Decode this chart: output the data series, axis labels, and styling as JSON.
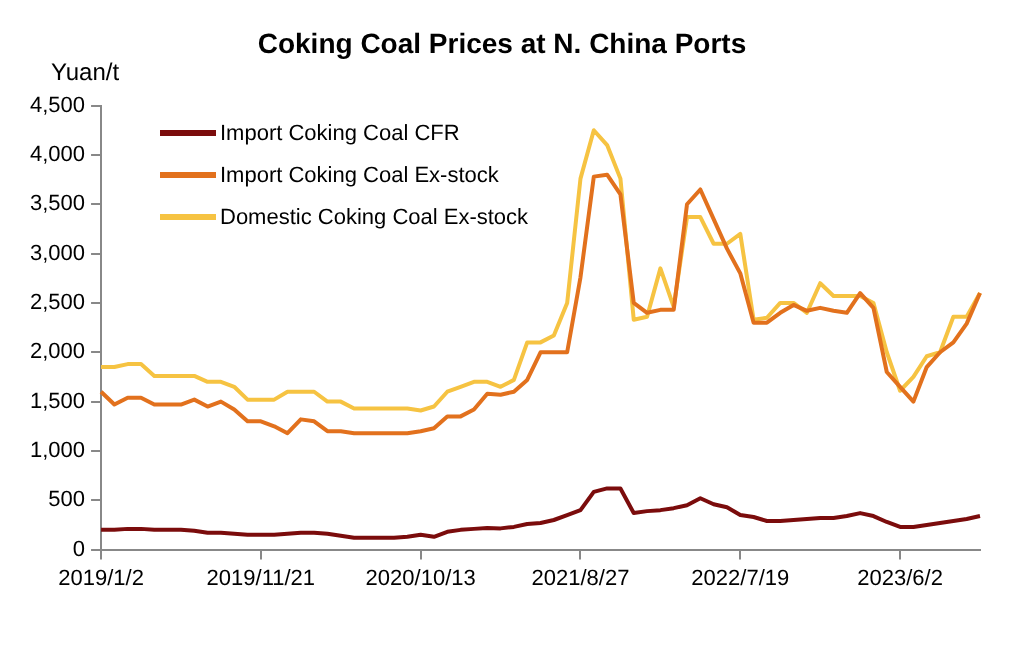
{
  "chart_data": {
    "type": "line",
    "title": "Coking Coal Prices at N. China Ports",
    "ylabel": "Yuan/t",
    "categories": [
      "2019/1/2",
      null,
      null,
      null,
      null,
      null,
      null,
      null,
      null,
      null,
      null,
      null,
      "2019/11/21",
      null,
      null,
      null,
      null,
      null,
      null,
      null,
      null,
      null,
      null,
      null,
      "2020/10/13",
      null,
      null,
      null,
      null,
      null,
      null,
      null,
      null,
      null,
      null,
      null,
      "2021/8/27",
      null,
      null,
      null,
      null,
      null,
      null,
      null,
      null,
      null,
      null,
      null,
      "2022/7/19",
      null,
      null,
      null,
      null,
      null,
      null,
      null,
      null,
      null,
      null,
      null,
      "2023/6/2",
      null,
      null,
      null,
      null,
      null,
      null
    ],
    "series": [
      {
        "name": "Import Coking Coal CFR",
        "color": "#7b0c0c",
        "values": [
          200,
          200,
          210,
          210,
          200,
          200,
          200,
          190,
          170,
          170,
          160,
          150,
          150,
          150,
          160,
          170,
          170,
          160,
          140,
          120,
          120,
          120,
          120,
          130,
          150,
          130,
          180,
          200,
          210,
          220,
          215,
          230,
          260,
          270,
          300,
          350,
          400,
          585,
          620,
          620,
          370,
          390,
          400,
          420,
          450,
          520,
          460,
          430,
          350,
          330,
          290,
          290,
          300,
          310,
          320,
          320,
          340,
          370,
          340,
          280,
          230,
          230,
          250,
          270,
          290,
          310,
          340
        ]
      },
      {
        "name": "Import Coking Coal Ex-stock",
        "color": "#e2711d",
        "values": [
          1600,
          1470,
          1540,
          1540,
          1470,
          1470,
          1470,
          1520,
          1450,
          1500,
          1420,
          1300,
          1300,
          1250,
          1180,
          1320,
          1300,
          1200,
          1200,
          1180,
          1180,
          1180,
          1180,
          1180,
          1200,
          1230,
          1350,
          1350,
          1420,
          1580,
          1570,
          1600,
          1720,
          2000,
          2000,
          2000,
          2760,
          3780,
          3800,
          3600,
          2500,
          2400,
          2430,
          2430,
          3500,
          3650,
          3350,
          3050,
          2800,
          2300,
          2300,
          2400,
          2480,
          2420,
          2450,
          2420,
          2400,
          2600,
          2450,
          1800,
          1650,
          1500,
          1850,
          2000,
          2100,
          2290,
          2600
        ]
      },
      {
        "name": "Domestic Coking Coal Ex-stock",
        "color": "#f6c342",
        "values": [
          1850,
          1850,
          1880,
          1880,
          1760,
          1760,
          1760,
          1760,
          1700,
          1700,
          1650,
          1520,
          1520,
          1520,
          1600,
          1600,
          1600,
          1500,
          1500,
          1430,
          1430,
          1430,
          1430,
          1430,
          1410,
          1450,
          1600,
          1650,
          1700,
          1700,
          1650,
          1720,
          2100,
          2100,
          2170,
          2500,
          3760,
          4250,
          4100,
          3760,
          2330,
          2360,
          2850,
          2460,
          3370,
          3370,
          3100,
          3100,
          3200,
          2330,
          2350,
          2500,
          2500,
          2400,
          2700,
          2570,
          2570,
          2570,
          2500,
          2000,
          1610,
          1750,
          1960,
          2000,
          2360,
          2360,
          2600
        ]
      }
    ],
    "ylim": [
      0,
      4500
    ],
    "yticks": [
      0,
      {
        "value": 500,
        "label": "500"
      },
      {
        "value": 1000,
        "label": "1,000"
      },
      {
        "value": 1500,
        "label": "1,500"
      },
      {
        "value": 2000,
        "label": "2,000"
      },
      {
        "value": 2500,
        "label": "2,500"
      },
      {
        "value": 3000,
        "label": "3,000"
      },
      {
        "value": 3500,
        "label": "3,500"
      },
      {
        "value": 4000,
        "label": "4,000"
      },
      {
        "value": 4500,
        "label": "4,500"
      }
    ],
    "grid": false,
    "legend": "top left"
  }
}
